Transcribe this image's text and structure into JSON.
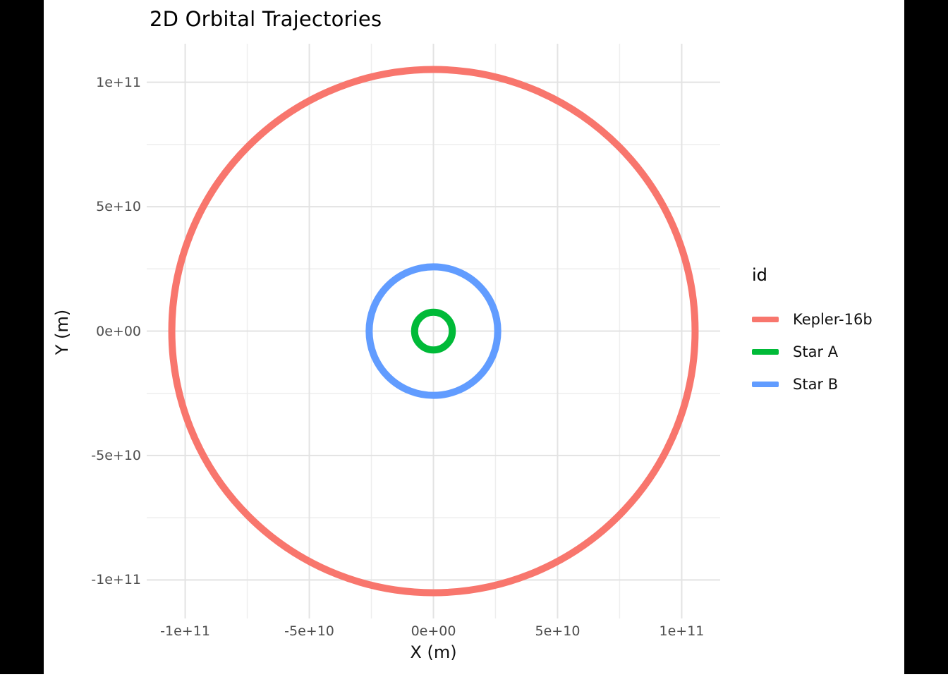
{
  "chart_data": {
    "type": "line",
    "subtype": "orbital-trajectories",
    "title": "2D Orbital Trajectories",
    "xlabel": "X (m)",
    "ylabel": "Y (m)",
    "xlim": [
      -115500000000.0,
      115500000000.0
    ],
    "ylim": [
      -115500000000.0,
      115500000000.0
    ],
    "grid": {
      "major": true,
      "minor": true
    },
    "x_ticks": {
      "values": [
        -100000000000.0,
        -50000000000.0,
        0,
        50000000000.0,
        100000000000.0
      ],
      "labels": [
        "-1e+11",
        "-5e+10",
        "0e+00",
        "5e+10",
        "1e+11"
      ]
    },
    "y_ticks": {
      "values": [
        -100000000000.0,
        -50000000000.0,
        0,
        50000000000.0,
        100000000000.0
      ],
      "labels": [
        "-1e+11",
        "-5e+10",
        "0e+00",
        "5e+10",
        "1e+11"
      ]
    },
    "legend": {
      "title": "id",
      "position": "right",
      "entries": [
        "Kepler-16b",
        "Star A",
        "Star B"
      ]
    },
    "series": [
      {
        "name": "Kepler-16b",
        "color": "#F8766D",
        "shape": "circle",
        "center_m": [
          0,
          0
        ],
        "orbit_radius_m": 105400000000.0
      },
      {
        "name": "Star A",
        "color": "#00BA38",
        "shape": "circle",
        "center_m": [
          0,
          0
        ],
        "orbit_radius_m": 7600000000.0
      },
      {
        "name": "Star B",
        "color": "#619CFF",
        "shape": "circle",
        "center_m": [
          0,
          0
        ],
        "orbit_radius_m": 25900000000.0
      }
    ]
  }
}
